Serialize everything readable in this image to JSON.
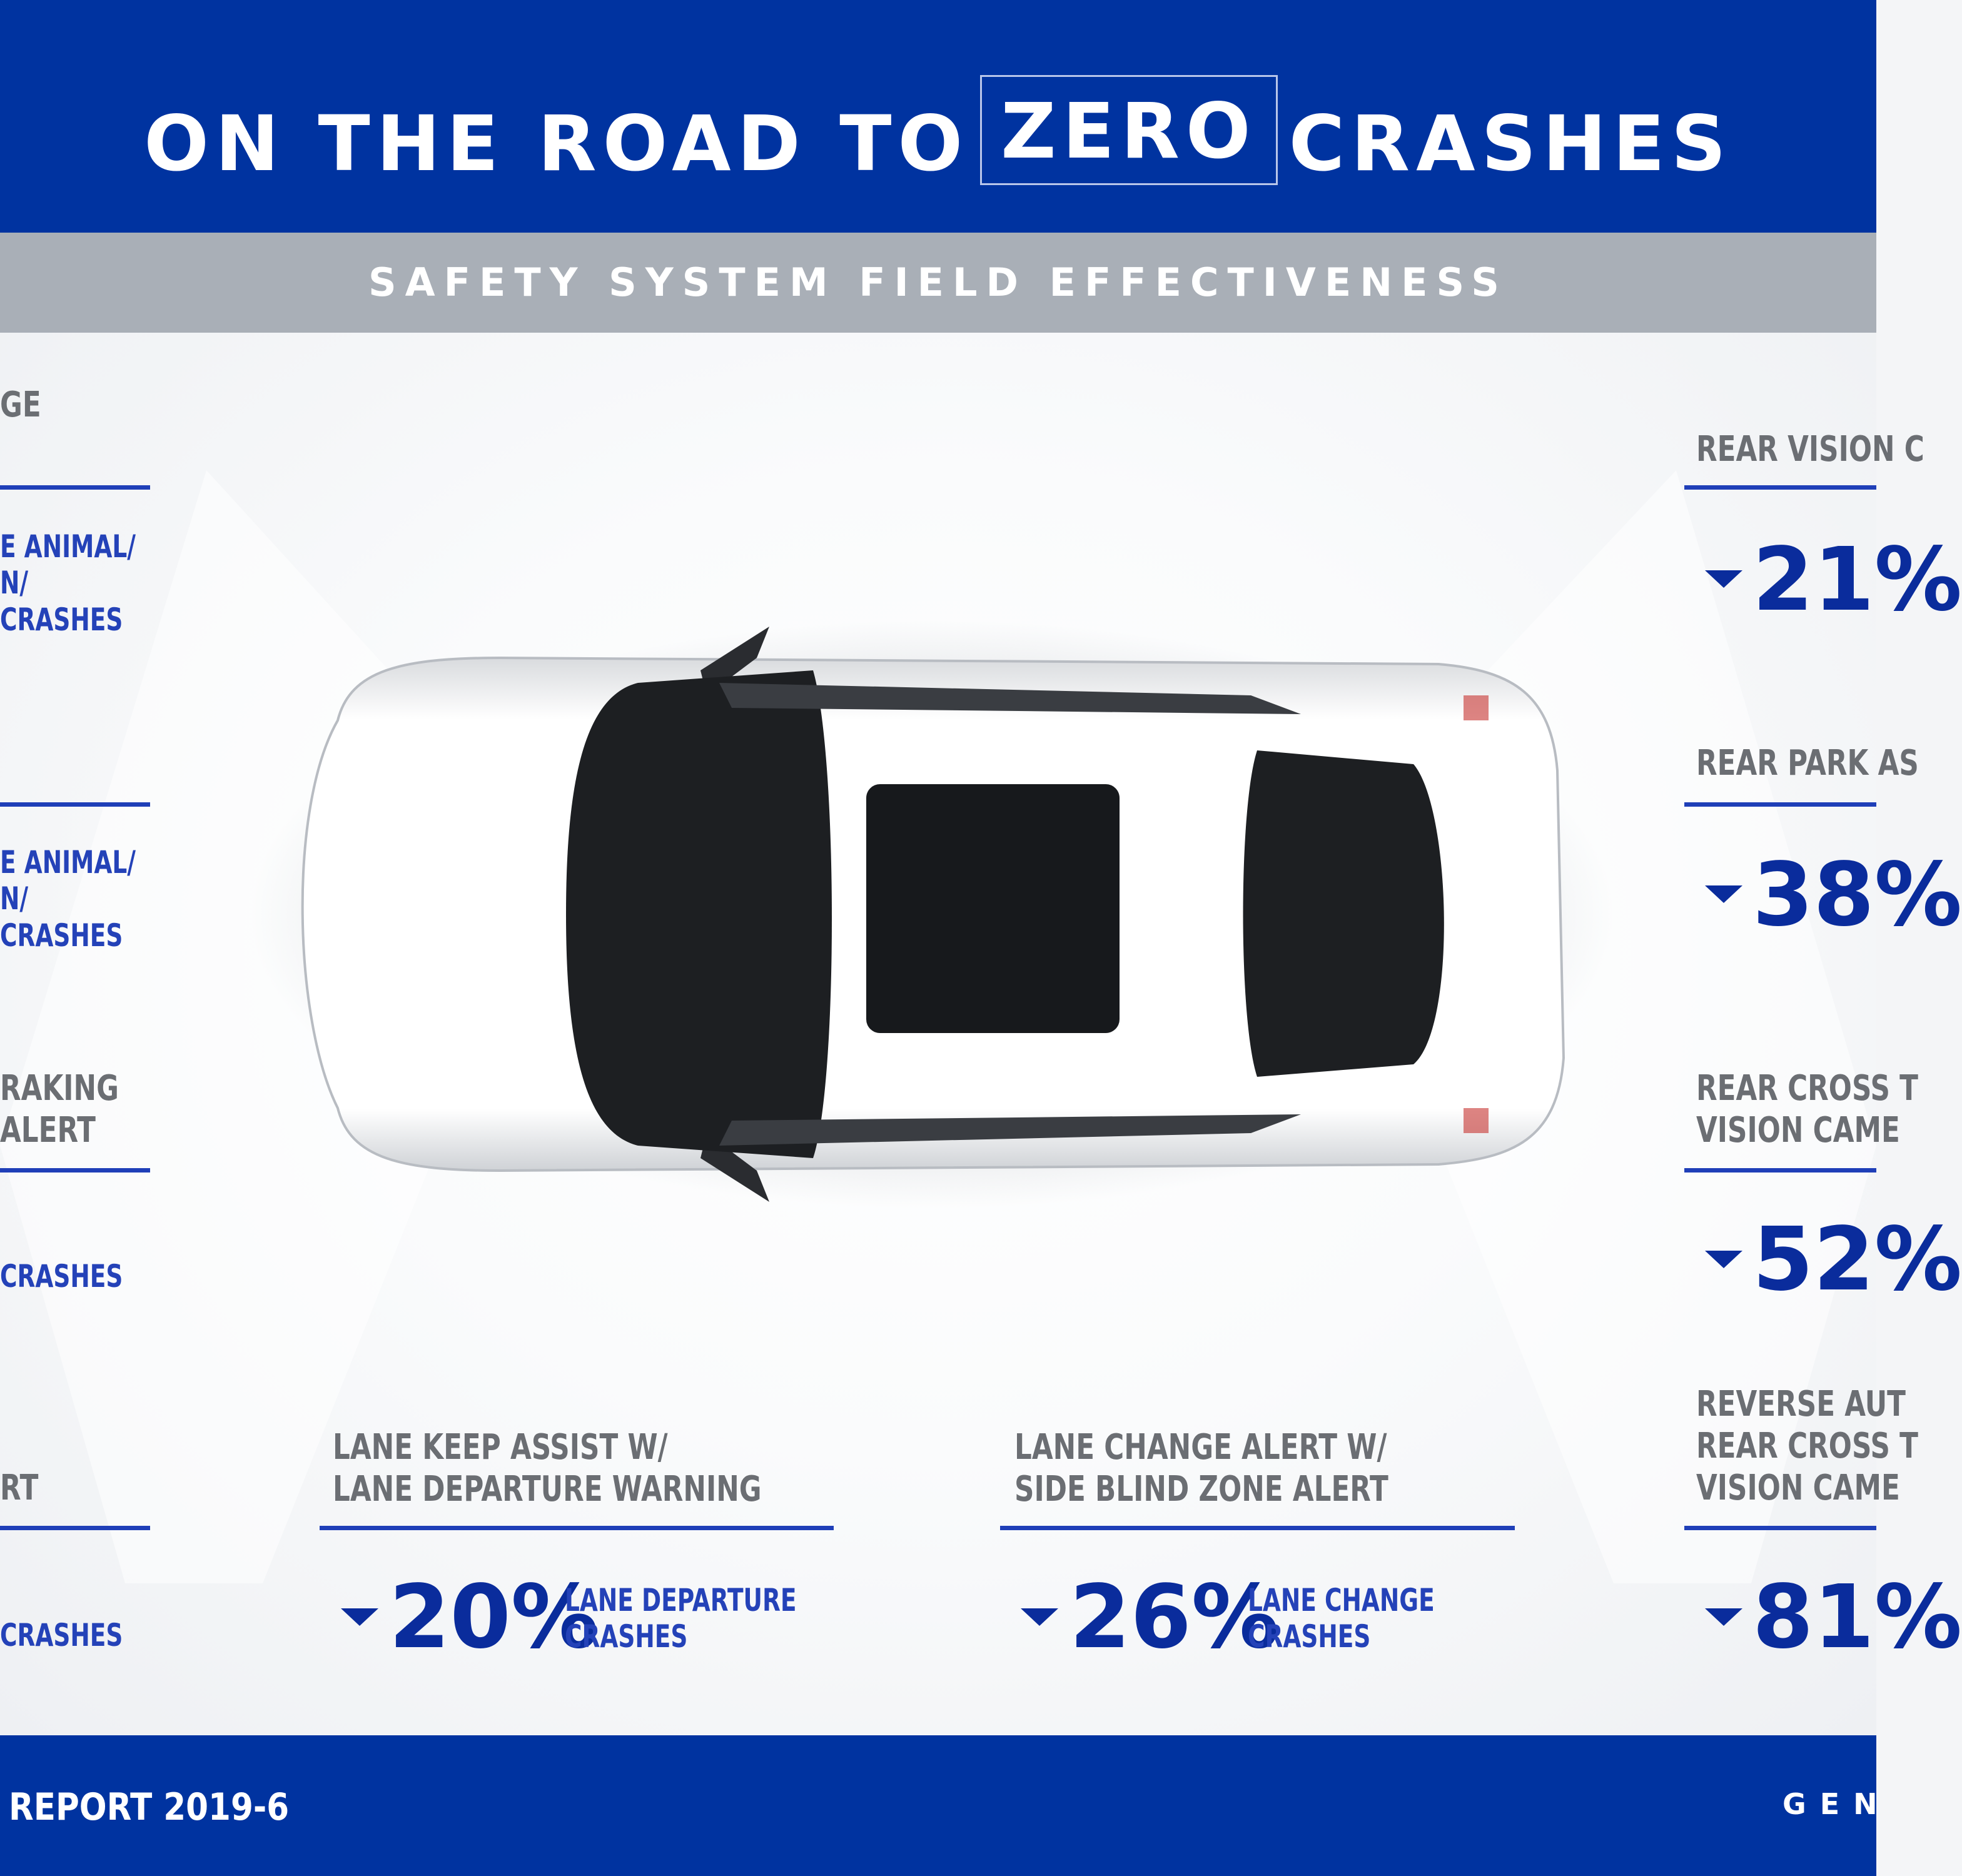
{
  "header": {
    "title_before": "ON THE ROAD TO",
    "title_boxed": "ZERO",
    "title_after": "CRASHES"
  },
  "subtitle": "SAFETY SYSTEM FIELD EFFECTIVENESS",
  "colors": {
    "brand_blue": "#0033a0",
    "band_gray": "#a9afb7",
    "value_blue": "#0a2c9c"
  },
  "left_column": {
    "label_1": "GE",
    "sub_1": [
      "E ANIMAL/",
      "N/",
      "CRASHES"
    ],
    "sub_2": [
      "E ANIMAL/",
      "N/",
      "CRASHES"
    ],
    "label_3": [
      "RAKING",
      "ALERT"
    ],
    "sub_3": "CRASHES",
    "label_4": "RT",
    "sub_4": "CRASHES"
  },
  "right_column": [
    {
      "label": [
        "REAR VISION C"
      ],
      "value": "21%",
      "icon": "down-arrow-icon"
    },
    {
      "label": [
        "REAR PARK AS"
      ],
      "value": "38%",
      "icon": "down-arrow-icon"
    },
    {
      "label": [
        "REAR CROSS T",
        "VISION CAME"
      ],
      "value": "52%",
      "icon": "down-arrow-icon"
    },
    {
      "label": [
        "REVERSE AUT",
        "REAR CROSS T",
        "VISION CAME"
      ],
      "value": "81%",
      "icon": "down-arrow-icon"
    }
  ],
  "bottom": [
    {
      "label": [
        "LANE KEEP ASSIST W/",
        "LANE DEPARTURE WARNING"
      ],
      "value": "20%",
      "sub": [
        "LANE DEPARTURE",
        "CRASHES"
      ],
      "icon": "down-arrow-icon"
    },
    {
      "label": [
        "LANE CHANGE ALERT W/",
        "SIDE BLIND ZONE ALERT"
      ],
      "value": "26%",
      "sub": [
        "LANE CHANGE",
        "CRASHES"
      ],
      "icon": "down-arrow-icon"
    }
  ],
  "footer": {
    "left": "REPORT 2019-6",
    "right": "GEN"
  }
}
